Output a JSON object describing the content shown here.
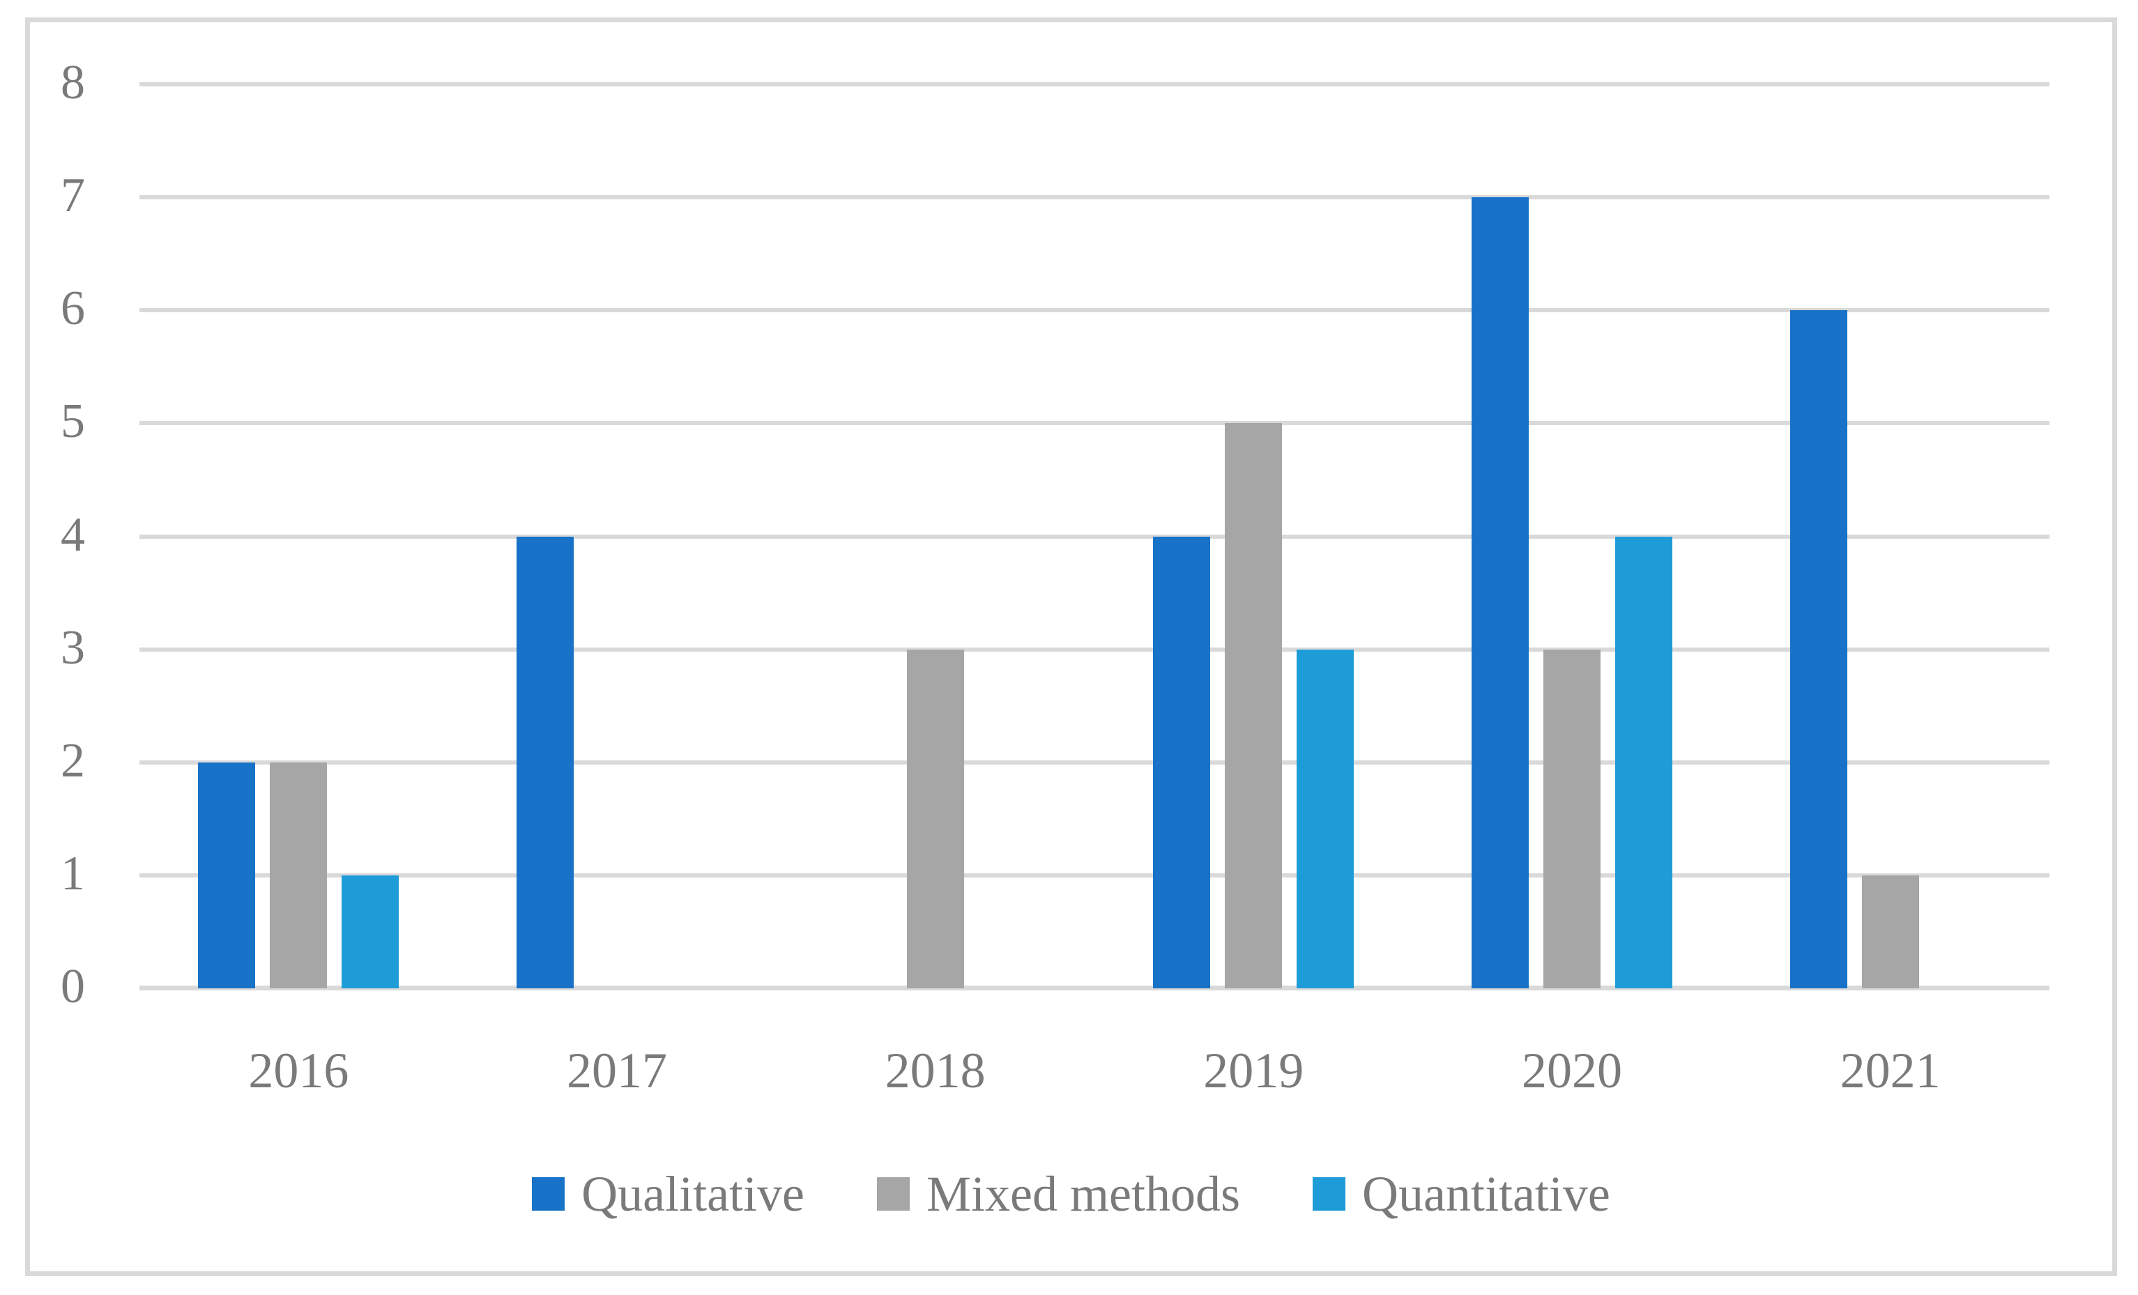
{
  "chart_data": {
    "type": "bar",
    "title": "",
    "xlabel": "",
    "ylabel": "",
    "categories": [
      "2016",
      "2017",
      "2018",
      "2019",
      "2020",
      "2021"
    ],
    "series": [
      {
        "name": "Qualitative",
        "color": "#1772C8",
        "values": [
          2,
          4,
          0,
          4,
          7,
          6
        ]
      },
      {
        "name": "Mixed methods",
        "color": "#A6A6A6",
        "values": [
          2,
          0,
          3,
          5,
          3,
          1
        ]
      },
      {
        "name": "Quantitative",
        "color": "#1E9CD8",
        "values": [
          1,
          0,
          0,
          3,
          4,
          0
        ]
      }
    ],
    "ylim": [
      0,
      8
    ],
    "ytick_interval": 1,
    "yticks": [
      "0",
      "1",
      "2",
      "3",
      "4",
      "5",
      "6",
      "7",
      "8"
    ],
    "grid": "horizontal-only",
    "legend_position": "bottom-center"
  },
  "colors": {
    "background": "#FFFFFF",
    "frame_border": "#D9D9D9",
    "gridline": "#D9D9D9",
    "axis_text": "#7A7A7A",
    "legend_text": "#7A7A7A"
  }
}
